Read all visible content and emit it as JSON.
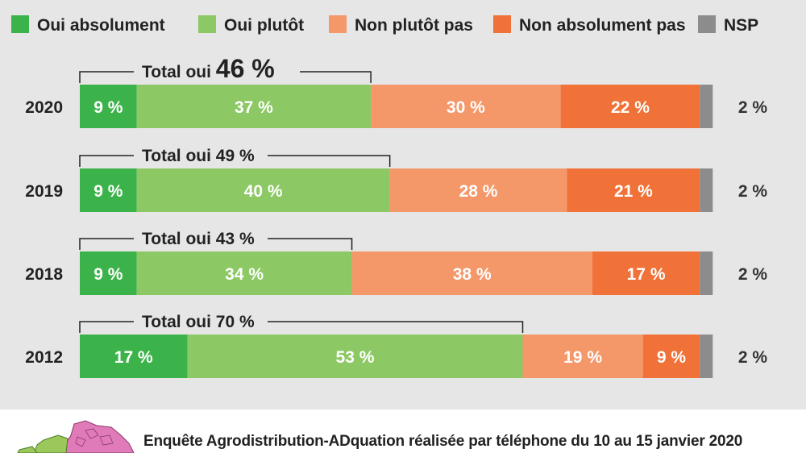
{
  "chart_data": {
    "type": "bar",
    "orientation": "horizontal",
    "stacked": true,
    "categories": [
      "2020",
      "2019",
      "2018",
      "2012"
    ],
    "series": [
      {
        "name": "Oui absolument",
        "color": "#3cb34a",
        "values": [
          9,
          9,
          9,
          17
        ]
      },
      {
        "name": "Oui plutôt",
        "color": "#8cc864",
        "values": [
          37,
          40,
          34,
          53
        ]
      },
      {
        "name": "Non plutôt pas",
        "color": "#f4986a",
        "values": [
          30,
          28,
          38,
          19
        ]
      },
      {
        "name": "Non absolument pas",
        "color": "#f07238",
        "values": [
          22,
          21,
          17,
          9
        ]
      },
      {
        "name": "NSP",
        "color": "#8c8c8c",
        "values": [
          2,
          2,
          2,
          2
        ]
      }
    ],
    "data_labels": [
      [
        "9 %",
        "37 %",
        "30 %",
        "22 %",
        "2 %"
      ],
      [
        "9 %",
        "40 %",
        "28 %",
        "21 %",
        "2 %"
      ],
      [
        "9 %",
        "34 %",
        "38 %",
        "17 %",
        "2 %"
      ],
      [
        "17 %",
        "53 %",
        "19 %",
        "9 %",
        "2 %"
      ]
    ],
    "totals": [
      {
        "label": "Total oui",
        "value": "46 %",
        "highlight": true
      },
      {
        "label": "Total oui",
        "value": "49 %",
        "highlight": false
      },
      {
        "label": "Total oui",
        "value": "43 %",
        "highlight": false
      },
      {
        "label": "Total oui",
        "value": "70 %",
        "highlight": false
      }
    ],
    "legend_position": "top",
    "grid": false
  },
  "footer": {
    "source": "Enquête Agrodistribution-ADquation réalisée par téléphone du 10 au 15 janvier 2020"
  },
  "colors": {
    "background": "#e6e6e6",
    "label_text": "#ffffff",
    "text": "#222222"
  }
}
